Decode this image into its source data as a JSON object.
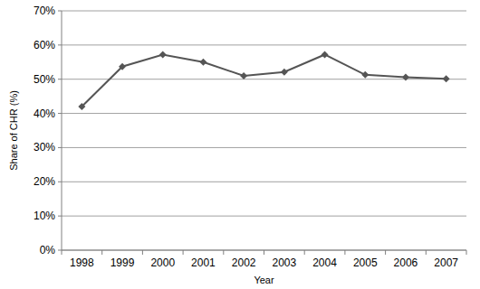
{
  "chart_data": {
    "type": "line",
    "x_label": "Year",
    "y_label": "Share of CHR (%)",
    "categories": [
      "1998",
      "1999",
      "2000",
      "2001",
      "2002",
      "2003",
      "2004",
      "2005",
      "2006",
      "2007"
    ],
    "values": [
      42,
      53.7,
      57.2,
      55,
      51,
      52.1,
      57.2,
      51.3,
      50.6,
      50.1
    ],
    "color": "#555555",
    "marker": "diamond",
    "ylim": [
      0,
      70
    ],
    "yticks": [
      {
        "value": 0,
        "label": "0%"
      },
      {
        "value": 10,
        "label": "10%"
      },
      {
        "value": 20,
        "label": "20%"
      },
      {
        "value": 30,
        "label": "30%"
      },
      {
        "value": 40,
        "label": "40%"
      },
      {
        "value": 50,
        "label": "50%"
      },
      {
        "value": 60,
        "label": "60%"
      },
      {
        "value": 70,
        "label": "70%"
      }
    ],
    "grid": true
  }
}
